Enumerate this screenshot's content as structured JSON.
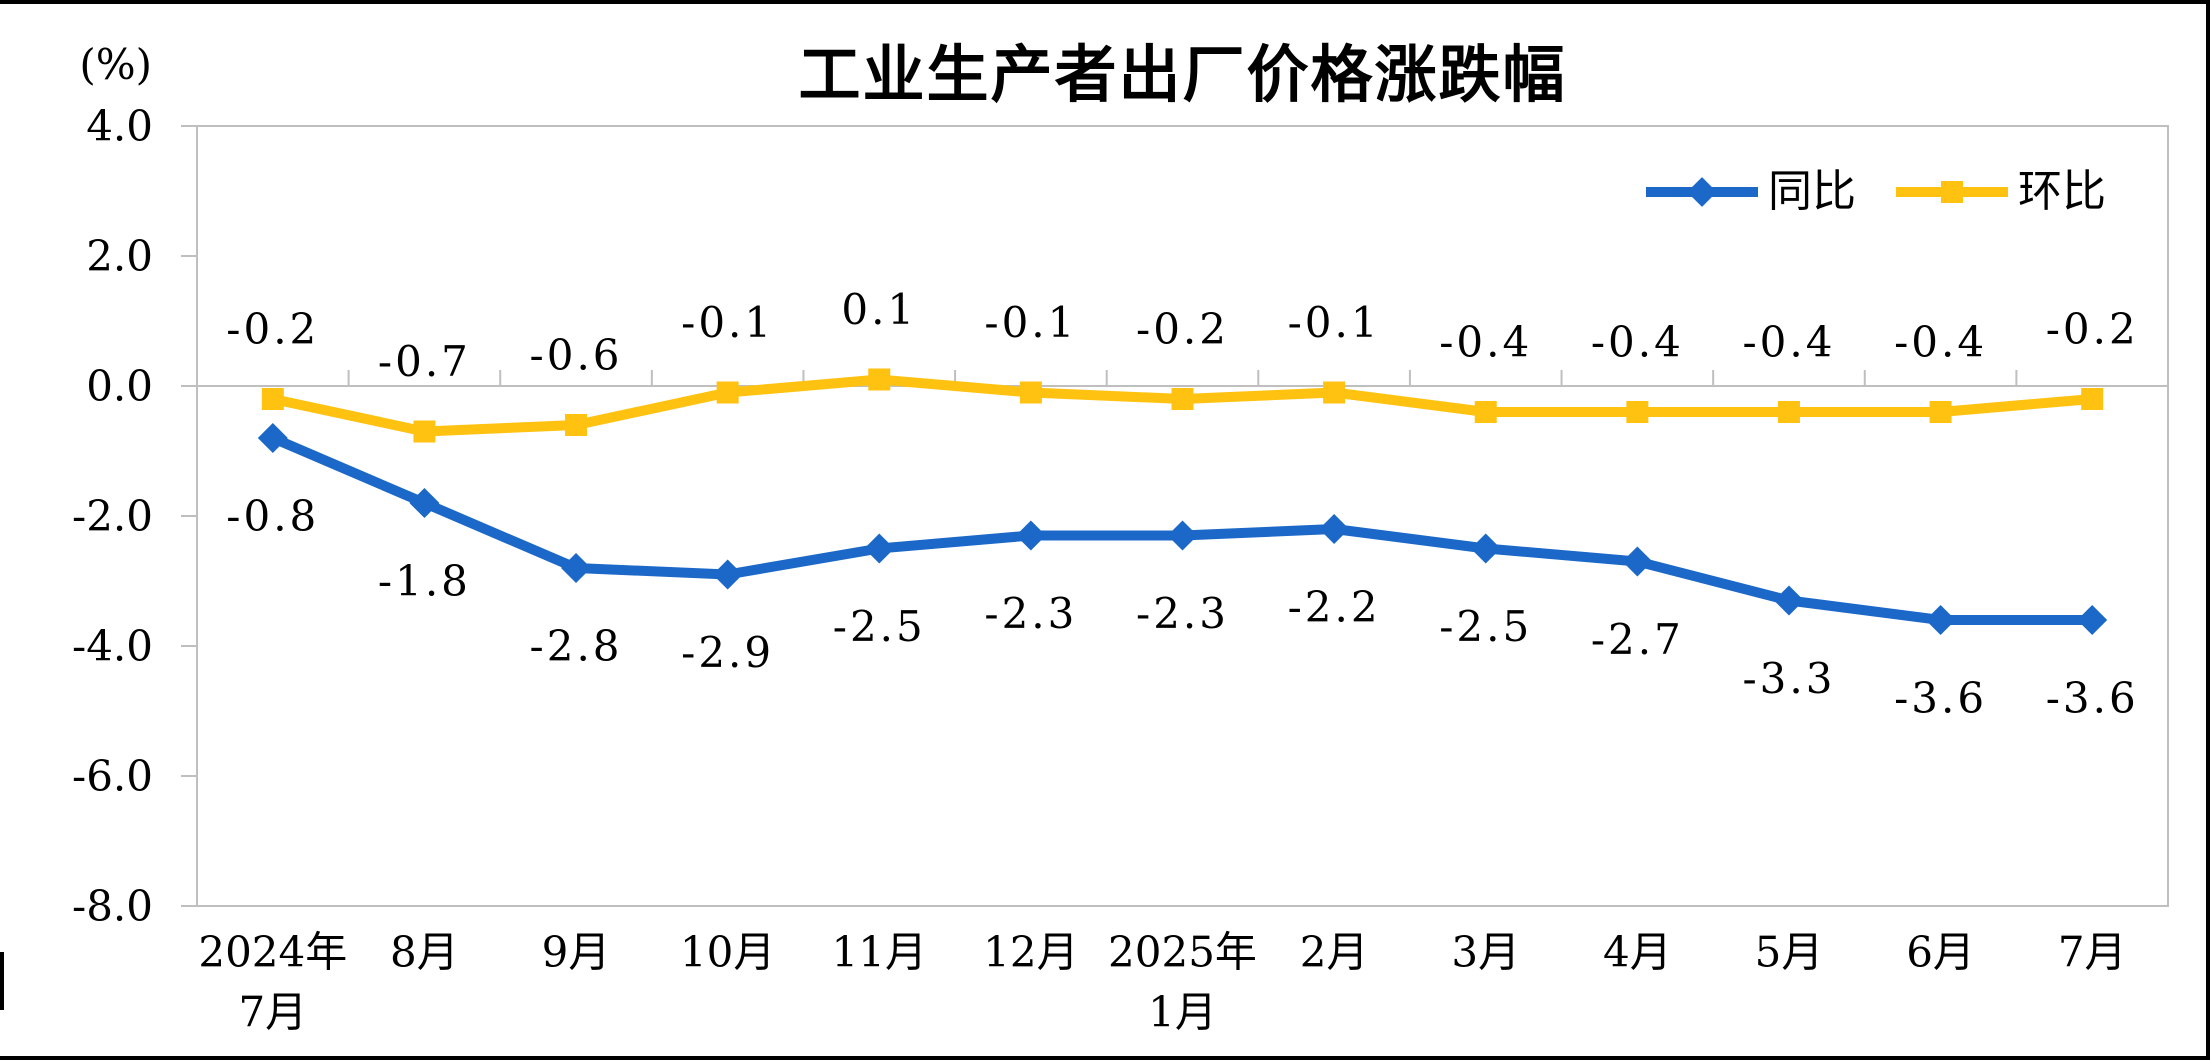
{
  "chart": {
    "title": "工业生产者出厂价格涨跌幅",
    "unit_label": "(%)"
  },
  "legend": {
    "items": [
      {
        "label": "同比",
        "marker": "diamond",
        "color": "#1B68C8"
      },
      {
        "label": "环比",
        "marker": "square",
        "color": "#FFC210"
      }
    ]
  },
  "chart_data": {
    "type": "line",
    "title": "工业生产者出厂价格涨跌幅",
    "unit": "(%)",
    "categories": [
      "2024年\n7月",
      "8月",
      "9月",
      "10月",
      "11月",
      "12月",
      "2025年\n1月",
      "2月",
      "3月",
      "4月",
      "5月",
      "6月",
      "7月"
    ],
    "series": [
      {
        "name": "同比",
        "color": "#1B68C8",
        "marker": "diamond",
        "label_position": "below",
        "values": [
          -0.8,
          -1.8,
          -2.8,
          -2.9,
          -2.5,
          -2.3,
          -2.3,
          -2.2,
          -2.5,
          -2.7,
          -3.3,
          -3.6,
          -3.6
        ]
      },
      {
        "name": "环比",
        "color": "#FFC210",
        "marker": "square",
        "label_position": "above",
        "values": [
          -0.2,
          -0.7,
          -0.6,
          -0.1,
          0.1,
          -0.1,
          -0.2,
          -0.1,
          -0.4,
          -0.4,
          -0.4,
          -0.4,
          -0.2
        ]
      }
    ],
    "y_axis": {
      "min": -8.0,
      "max": 4.0,
      "step": 2.0,
      "tick_labels": [
        "4.0",
        "2.0",
        "0.0",
        "-2.0",
        "-4.0",
        "-6.0",
        "-8.0"
      ]
    },
    "grid": "zero-line-only",
    "legend_position": "top-right",
    "axis_color": "#BFBFBF",
    "label_color": "#000000"
  }
}
